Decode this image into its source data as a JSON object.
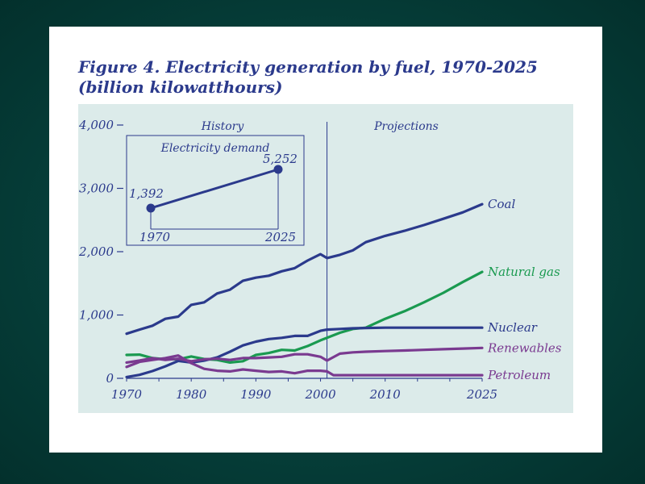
{
  "figure": {
    "title_line1": "Figure 4. Electricity generation by fuel, 1970-2025",
    "title_line2": "(billion kilowatthours)"
  },
  "colors": {
    "background": "#063f3a",
    "panel": "#dcebea",
    "title": "#2b3a8c",
    "coal": "#2b3a8c",
    "natural_gas": "#1a9a50",
    "nuclear": "#2b3a8c",
    "renewables": "#7a3a90",
    "petroleum": "#7a3a90",
    "axis": "#2b3a8c"
  },
  "chart_data": {
    "type": "line",
    "title": "Figure 4. Electricity generation by fuel, 1970-2025",
    "ylabel": "billion kilowatthours",
    "xlabel": "",
    "xlim": [
      1970,
      2025
    ],
    "ylim": [
      0,
      4000
    ],
    "x_ticks": [
      1970,
      1980,
      1990,
      2000,
      2010,
      2025
    ],
    "y_ticks": [
      0,
      1000,
      2000,
      3000,
      4000
    ],
    "y_tick_labels": [
      "0",
      "1,000",
      "2,000",
      "3,000",
      "4,000"
    ],
    "divider_year": 2001,
    "region_labels": {
      "history": "History",
      "projections": "Projections"
    },
    "series": [
      {
        "name": "Coal",
        "key": "coal",
        "x": [
          1970,
          1972,
          1974,
          1976,
          1978,
          1980,
          1982,
          1984,
          1986,
          1988,
          1990,
          1992,
          1994,
          1996,
          1998,
          2000,
          2001,
          2003,
          2005,
          2007,
          2010,
          2013,
          2016,
          2019,
          2022,
          2025
        ],
        "values": [
          705,
          770,
          830,
          940,
          975,
          1160,
          1200,
          1340,
          1400,
          1540,
          1590,
          1620,
          1690,
          1740,
          1860,
          1960,
          1900,
          1950,
          2020,
          2150,
          2250,
          2330,
          2420,
          2520,
          2620,
          2750
        ]
      },
      {
        "name": "Natural gas",
        "key": "natural_gas",
        "x": [
          1970,
          1972,
          1974,
          1976,
          1978,
          1980,
          1982,
          1984,
          1986,
          1988,
          1990,
          1992,
          1994,
          1996,
          1998,
          2000,
          2001,
          2003,
          2005,
          2007,
          2010,
          2013,
          2016,
          2019,
          2022,
          2025
        ],
        "values": [
          370,
          375,
          320,
          300,
          300,
          345,
          305,
          290,
          250,
          270,
          370,
          400,
          450,
          440,
          510,
          600,
          640,
          720,
          780,
          800,
          940,
          1060,
          1200,
          1350,
          1520,
          1680
        ]
      },
      {
        "name": "Nuclear",
        "key": "nuclear",
        "x": [
          1970,
          1972,
          1974,
          1976,
          1978,
          1980,
          1982,
          1984,
          1986,
          1988,
          1990,
          1992,
          1994,
          1996,
          1998,
          2000,
          2001,
          2003,
          2005,
          2007,
          2010,
          2013,
          2016,
          2019,
          2022,
          2025
        ],
        "values": [
          20,
          55,
          115,
          190,
          275,
          250,
          280,
          330,
          420,
          520,
          580,
          620,
          640,
          670,
          670,
          750,
          770,
          780,
          790,
          795,
          800,
          800,
          800,
          800,
          800,
          800
        ]
      },
      {
        "name": "Renewables",
        "key": "renewables",
        "x": [
          1970,
          1972,
          1974,
          1976,
          1978,
          1980,
          1982,
          1984,
          1986,
          1988,
          1990,
          1992,
          1994,
          1996,
          1998,
          2000,
          2001,
          2003,
          2005,
          2007,
          2010,
          2013,
          2016,
          2019,
          2022,
          2025
        ],
        "values": [
          250,
          280,
          320,
          290,
          310,
          270,
          300,
          310,
          290,
          320,
          320,
          330,
          340,
          380,
          380,
          340,
          280,
          390,
          410,
          420,
          430,
          440,
          450,
          460,
          470,
          480
        ]
      },
      {
        "name": "Petroleum",
        "key": "petroleum",
        "x": [
          1970,
          1972,
          1974,
          1976,
          1978,
          1980,
          1982,
          1984,
          1986,
          1988,
          1990,
          1992,
          1994,
          1996,
          1998,
          2000,
          2001,
          2002,
          2005,
          2010,
          2015,
          2020,
          2025
        ],
        "values": [
          180,
          260,
          290,
          320,
          360,
          240,
          150,
          120,
          110,
          140,
          120,
          100,
          110,
          80,
          120,
          120,
          110,
          50,
          50,
          50,
          50,
          50,
          50
        ]
      }
    ],
    "inset": {
      "title": "Electricity demand",
      "type": "line",
      "x": [
        1970,
        2025
      ],
      "values": [
        1392,
        5252
      ],
      "value_labels": [
        "1,392",
        "5,252"
      ],
      "x_labels": [
        "1970",
        "2025"
      ]
    }
  }
}
